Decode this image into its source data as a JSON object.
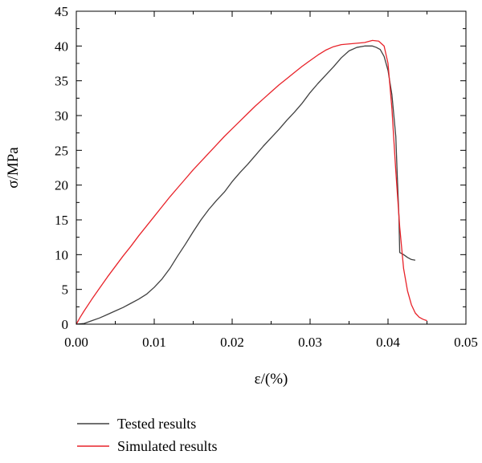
{
  "chart_data": {
    "type": "line",
    "title": "",
    "xlabel": "ε/(%)",
    "ylabel": "σ/MPa",
    "xlim": [
      0,
      0.05
    ],
    "ylim": [
      0,
      45
    ],
    "x_ticks": [
      0.0,
      0.01,
      0.02,
      0.03,
      0.04,
      0.05
    ],
    "x_tick_labels": [
      "0.00",
      "0.01",
      "0.02",
      "0.03",
      "0.04",
      "0.05"
    ],
    "y_ticks": [
      0,
      5,
      10,
      15,
      20,
      25,
      30,
      35,
      40,
      45
    ],
    "y_tick_labels": [
      "0",
      "5",
      "10",
      "15",
      "20",
      "25",
      "30",
      "35",
      "40",
      "45"
    ],
    "grid": false,
    "legend_position": "bottom-left, below plot",
    "series": [
      {
        "name": "Tested results",
        "color": "#404040",
        "points": [
          [
            0.0,
            0.0
          ],
          [
            0.001,
            0.1
          ],
          [
            0.002,
            0.5
          ],
          [
            0.003,
            0.9
          ],
          [
            0.004,
            1.4
          ],
          [
            0.005,
            1.9
          ],
          [
            0.006,
            2.4
          ],
          [
            0.007,
            3.0
          ],
          [
            0.008,
            3.6
          ],
          [
            0.009,
            4.3
          ],
          [
            0.01,
            5.3
          ],
          [
            0.011,
            6.5
          ],
          [
            0.012,
            8.0
          ],
          [
            0.013,
            9.8
          ],
          [
            0.014,
            11.5
          ],
          [
            0.015,
            13.3
          ],
          [
            0.016,
            15.0
          ],
          [
            0.017,
            16.5
          ],
          [
            0.018,
            17.8
          ],
          [
            0.019,
            19.0
          ],
          [
            0.02,
            20.5
          ],
          [
            0.021,
            21.8
          ],
          [
            0.022,
            23.0
          ],
          [
            0.023,
            24.3
          ],
          [
            0.024,
            25.6
          ],
          [
            0.025,
            26.8
          ],
          [
            0.026,
            28.0
          ],
          [
            0.027,
            29.3
          ],
          [
            0.028,
            30.5
          ],
          [
            0.029,
            31.8
          ],
          [
            0.03,
            33.3
          ],
          [
            0.031,
            34.6
          ],
          [
            0.032,
            35.8
          ],
          [
            0.033,
            37.0
          ],
          [
            0.034,
            38.3
          ],
          [
            0.035,
            39.3
          ],
          [
            0.036,
            39.8
          ],
          [
            0.037,
            40.0
          ],
          [
            0.038,
            40.0
          ],
          [
            0.0385,
            39.8
          ],
          [
            0.039,
            39.5
          ],
          [
            0.0395,
            38.5
          ],
          [
            0.04,
            36.5
          ],
          [
            0.0405,
            33.0
          ],
          [
            0.041,
            27.0
          ],
          [
            0.0412,
            21.0
          ],
          [
            0.0414,
            15.5
          ],
          [
            0.0415,
            10.3
          ],
          [
            0.042,
            10.0
          ],
          [
            0.0425,
            9.6
          ],
          [
            0.043,
            9.3
          ],
          [
            0.0435,
            9.2
          ]
        ]
      },
      {
        "name": "Simulated results",
        "color": "#e8232a",
        "points": [
          [
            0.0,
            0.0
          ],
          [
            0.0005,
            1.0
          ],
          [
            0.001,
            1.9
          ],
          [
            0.002,
            3.6
          ],
          [
            0.003,
            5.2
          ],
          [
            0.004,
            6.8
          ],
          [
            0.005,
            8.3
          ],
          [
            0.006,
            9.8
          ],
          [
            0.007,
            11.2
          ],
          [
            0.008,
            12.7
          ],
          [
            0.009,
            14.1
          ],
          [
            0.01,
            15.5
          ],
          [
            0.011,
            16.9
          ],
          [
            0.012,
            18.3
          ],
          [
            0.013,
            19.6
          ],
          [
            0.014,
            20.9
          ],
          [
            0.015,
            22.2
          ],
          [
            0.016,
            23.4
          ],
          [
            0.017,
            24.6
          ],
          [
            0.018,
            25.8
          ],
          [
            0.019,
            27.0
          ],
          [
            0.02,
            28.1
          ],
          [
            0.021,
            29.2
          ],
          [
            0.022,
            30.3
          ],
          [
            0.023,
            31.4
          ],
          [
            0.024,
            32.4
          ],
          [
            0.025,
            33.4
          ],
          [
            0.026,
            34.4
          ],
          [
            0.027,
            35.3
          ],
          [
            0.028,
            36.2
          ],
          [
            0.029,
            37.1
          ],
          [
            0.03,
            37.9
          ],
          [
            0.031,
            38.7
          ],
          [
            0.032,
            39.4
          ],
          [
            0.033,
            39.9
          ],
          [
            0.034,
            40.2
          ],
          [
            0.035,
            40.3
          ],
          [
            0.036,
            40.4
          ],
          [
            0.037,
            40.5
          ],
          [
            0.038,
            40.8
          ],
          [
            0.0388,
            40.7
          ],
          [
            0.0395,
            40.0
          ],
          [
            0.04,
            37.5
          ],
          [
            0.0405,
            31.0
          ],
          [
            0.041,
            22.0
          ],
          [
            0.0415,
            14.0
          ],
          [
            0.042,
            8.0
          ],
          [
            0.0425,
            4.8
          ],
          [
            0.043,
            2.8
          ],
          [
            0.0435,
            1.6
          ],
          [
            0.044,
            1.0
          ],
          [
            0.0445,
            0.7
          ],
          [
            0.045,
            0.5
          ]
        ]
      }
    ]
  }
}
